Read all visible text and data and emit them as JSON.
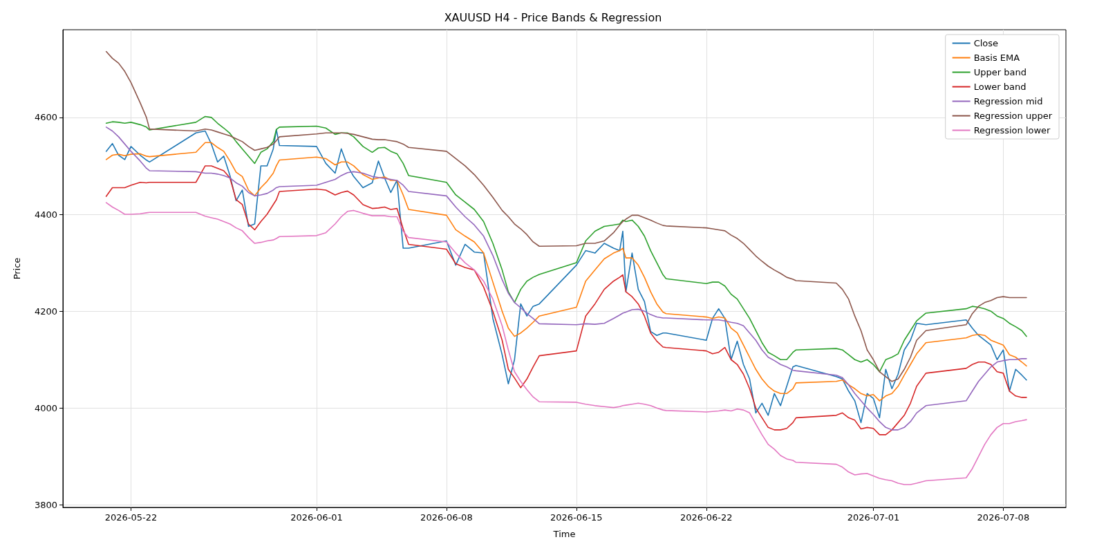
{
  "chart_data": {
    "type": "line",
    "title": "XAUUSD H4 - Price Bands & Regression",
    "xlabel": "Time",
    "ylabel": "Price",
    "x": [
      "2026-05-20T16:00",
      "2026-05-21T00:00",
      "2026-05-21T08:00",
      "2026-05-21T16:00",
      "2026-05-22T00:00",
      "2026-05-22T12:00",
      "2026-05-22T20:00",
      "2026-05-23T00:00",
      "2026-05-25T12:00",
      "2026-05-26T00:00",
      "2026-05-26T08:00",
      "2026-05-26T16:00",
      "2026-05-27T00:00",
      "2026-05-27T08:00",
      "2026-05-27T16:00",
      "2026-05-28T00:00",
      "2026-05-28T08:00",
      "2026-05-28T16:00",
      "2026-05-29T00:00",
      "2026-05-29T08:00",
      "2026-05-29T16:00",
      "2026-05-29T20:00",
      "2026-05-30T00:00",
      "2026-06-01T00:00",
      "2026-06-01T12:00",
      "2026-06-02T00:00",
      "2026-06-02T08:00",
      "2026-06-02T16:00",
      "2026-06-03T00:00",
      "2026-06-03T12:00",
      "2026-06-04T00:00",
      "2026-06-04T08:00",
      "2026-06-04T16:00",
      "2026-06-05T00:00",
      "2026-06-05T08:00",
      "2026-06-05T16:00",
      "2026-06-05T23:00",
      "2026-06-08T00:00",
      "2026-06-08T12:00",
      "2026-06-09T00:00",
      "2026-06-09T12:00",
      "2026-06-10T00:00",
      "2026-06-10T12:00",
      "2026-06-11T00:00",
      "2026-06-11T08:00",
      "2026-06-11T16:00",
      "2026-06-12T00:00",
      "2026-06-12T08:00",
      "2026-06-12T16:00",
      "2026-06-13T00:00",
      "2026-06-15T00:00",
      "2026-06-15T12:00",
      "2026-06-16T00:00",
      "2026-06-16T12:00",
      "2026-06-17T00:00",
      "2026-06-17T08:00",
      "2026-06-17T12:00",
      "2026-06-17T16:00",
      "2026-06-18T00:00",
      "2026-06-18T08:00",
      "2026-06-18T16:00",
      "2026-06-19T00:00",
      "2026-06-19T08:00",
      "2026-06-19T16:00",
      "2026-06-19T20:00",
      "2026-06-22T00:00",
      "2026-06-22T08:00",
      "2026-06-22T16:00",
      "2026-06-23T00:00",
      "2026-06-23T08:00",
      "2026-06-23T16:00",
      "2026-06-24T00:00",
      "2026-06-24T08:00",
      "2026-06-24T16:00",
      "2026-06-25T00:00",
      "2026-06-25T08:00",
      "2026-06-25T16:00",
      "2026-06-26T00:00",
      "2026-06-26T08:00",
      "2026-06-26T16:00",
      "2026-06-26T20:00",
      "2026-06-29T00:00",
      "2026-06-29T08:00",
      "2026-06-29T16:00",
      "2026-06-30T00:00",
      "2026-06-30T08:00",
      "2026-06-30T16:00",
      "2026-07-01T00:00",
      "2026-07-01T08:00",
      "2026-07-01T16:00",
      "2026-07-02T00:00",
      "2026-07-02T08:00",
      "2026-07-02T16:00",
      "2026-07-03T00:00",
      "2026-07-03T08:00",
      "2026-07-03T20:00",
      "2026-07-06T00:00",
      "2026-07-06T08:00",
      "2026-07-06T16:00",
      "2026-07-07T00:00",
      "2026-07-07T08:00",
      "2026-07-07T16:00",
      "2026-07-08T00:00",
      "2026-07-08T08:00",
      "2026-07-08T16:00",
      "2026-07-09T00:00",
      "2026-07-09T06:00"
    ],
    "series": [
      {
        "name": "Close",
        "color": "#1f77b4",
        "values": [
          4530,
          4546,
          4522,
          4513,
          4540,
          4522,
          4512,
          4508,
          4568,
          4572,
          4545,
          4508,
          4520,
          4480,
          4428,
          4450,
          4375,
          4380,
          4500,
          4500,
          4535,
          4575,
          4542,
          4540,
          4505,
          4485,
          4535,
          4500,
          4478,
          4455,
          4465,
          4510,
          4475,
          4445,
          4470,
          4330,
          4330,
          4345,
          4295,
          4338,
          4322,
          4320,
          4185,
          4110,
          4050,
          4100,
          4215,
          4190,
          4210,
          4215,
          4295,
          4325,
          4320,
          4340,
          4330,
          4325,
          4365,
          4240,
          4320,
          4245,
          4220,
          4158,
          4150,
          4155,
          4155,
          4140,
          4185,
          4205,
          4185,
          4100,
          4138,
          4090,
          4060,
          3990,
          4010,
          3985,
          4030,
          4005,
          4045,
          4085,
          4088,
          4065,
          4060,
          4035,
          4015,
          3970,
          4030,
          4020,
          3980,
          4080,
          4040,
          4070,
          4120,
          4140,
          4175,
          4172,
          4182,
          4165,
          4150,
          4140,
          4130,
          4100,
          4120,
          4035,
          4080,
          4068,
          4058
        ]
      },
      {
        "name": "Basis EMA",
        "color": "#ff7f0e",
        "values": [
          4513,
          4522,
          4524,
          4521,
          4524,
          4525,
          4520,
          4519,
          4528,
          4548,
          4548,
          4538,
          4530,
          4510,
          4487,
          4478,
          4450,
          4438,
          4455,
          4468,
          4485,
          4500,
          4512,
          4518,
          4515,
          4502,
          4508,
          4508,
          4500,
          4482,
          4472,
          4475,
          4477,
          4470,
          4470,
          4440,
          4410,
          4398,
          4368,
          4355,
          4343,
          4320,
          4260,
          4200,
          4165,
          4148,
          4155,
          4165,
          4177,
          4190,
          4208,
          4262,
          4285,
          4308,
          4320,
          4325,
          4330,
          4310,
          4310,
          4295,
          4270,
          4240,
          4215,
          4198,
          4195,
          4188,
          4185,
          4188,
          4186,
          4165,
          4155,
          4130,
          4105,
          4080,
          4060,
          4045,
          4035,
          4030,
          4030,
          4040,
          4052,
          4055,
          4058,
          4048,
          4040,
          4030,
          4025,
          4028,
          4015,
          4025,
          4030,
          4045,
          4068,
          4090,
          4112,
          4135,
          4145,
          4150,
          4152,
          4150,
          4140,
          4135,
          4130,
          4110,
          4105,
          4095,
          4087
        ]
      },
      {
        "name": "Upper band",
        "color": "#2ca02c",
        "values": [
          4588,
          4591,
          4590,
          4588,
          4590,
          4585,
          4580,
          4574,
          4590,
          4602,
          4600,
          4588,
          4578,
          4567,
          4550,
          4535,
          4520,
          4505,
          4528,
          4535,
          4550,
          4575,
          4580,
          4582,
          4578,
          4565,
          4568,
          4568,
          4560,
          4540,
          4528,
          4537,
          4538,
          4530,
          4525,
          4505,
          4480,
          4466,
          4440,
          4425,
          4410,
          4385,
          4340,
          4285,
          4240,
          4218,
          4245,
          4262,
          4270,
          4276,
          4300,
          4345,
          4365,
          4375,
          4378,
          4380,
          4388,
          4385,
          4388,
          4375,
          4355,
          4325,
          4300,
          4275,
          4267,
          4257,
          4260,
          4260,
          4252,
          4235,
          4225,
          4205,
          4185,
          4160,
          4135,
          4115,
          4108,
          4100,
          4100,
          4115,
          4120,
          4123,
          4120,
          4110,
          4100,
          4095,
          4100,
          4090,
          4075,
          4100,
          4105,
          4112,
          4140,
          4160,
          4180,
          4196,
          4205,
          4210,
          4208,
          4205,
          4200,
          4190,
          4185,
          4175,
          4168,
          4160,
          4148
        ]
      },
      {
        "name": "Lower band",
        "color": "#d62728",
        "values": [
          4437,
          4455,
          4455,
          4455,
          4460,
          4466,
          4465,
          4466,
          4466,
          4500,
          4500,
          4495,
          4490,
          4475,
          4430,
          4420,
          4380,
          4368,
          4385,
          4400,
          4420,
          4430,
          4447,
          4452,
          4450,
          4440,
          4445,
          4448,
          4440,
          4420,
          4412,
          4413,
          4415,
          4410,
          4412,
          4370,
          4338,
          4328,
          4298,
          4290,
          4285,
          4250,
          4200,
          4140,
          4080,
          4062,
          4042,
          4060,
          4085,
          4108,
          4118,
          4190,
          4215,
          4245,
          4262,
          4270,
          4275,
          4240,
          4230,
          4215,
          4190,
          4155,
          4138,
          4126,
          4125,
          4118,
          4112,
          4115,
          4125,
          4100,
          4090,
          4070,
          4040,
          4000,
          3980,
          3960,
          3955,
          3955,
          3958,
          3970,
          3980,
          3985,
          3990,
          3980,
          3975,
          3957,
          3960,
          3958,
          3945,
          3945,
          3955,
          3970,
          3985,
          4010,
          4045,
          4072,
          4082,
          4090,
          4095,
          4095,
          4090,
          4075,
          4072,
          4035,
          4025,
          4022,
          4022
        ]
      },
      {
        "name": "Regression mid",
        "color": "#9467bd",
        "values": [
          4580,
          4572,
          4560,
          4545,
          4530,
          4510,
          4495,
          4490,
          4488,
          4485,
          4485,
          4483,
          4480,
          4475,
          4465,
          4458,
          4445,
          4438,
          4440,
          4443,
          4450,
          4455,
          4457,
          4460,
          4466,
          4472,
          4480,
          4486,
          4488,
          4485,
          4478,
          4476,
          4474,
          4472,
          4470,
          4460,
          4447,
          4438,
          4415,
          4395,
          4378,
          4355,
          4315,
          4265,
          4237,
          4218,
          4207,
          4195,
          4185,
          4174,
          4172,
          4174,
          4173,
          4175,
          4185,
          4192,
          4196,
          4198,
          4203,
          4204,
          4200,
          4193,
          4188,
          4186,
          4186,
          4182,
          4182,
          4182,
          4180,
          4177,
          4175,
          4170,
          4155,
          4140,
          4120,
          4105,
          4098,
          4090,
          4085,
          4078,
          4077,
          4068,
          4063,
          4048,
          4030,
          4015,
          4000,
          3987,
          3972,
          3960,
          3955,
          3955,
          3960,
          3972,
          3990,
          4005,
          4015,
          4035,
          4055,
          4070,
          4085,
          4095,
          4098,
          4100,
          4100,
          4102,
          4102
        ]
      },
      {
        "name": "Regression upper",
        "color": "#8c564b",
        "values": [
          4736,
          4722,
          4712,
          4695,
          4672,
          4630,
          4600,
          4576,
          4572,
          4576,
          4574,
          4570,
          4566,
          4562,
          4556,
          4550,
          4540,
          4532,
          4535,
          4538,
          4545,
          4552,
          4560,
          4566,
          4568,
          4568,
          4568,
          4567,
          4565,
          4560,
          4555,
          4554,
          4554,
          4552,
          4550,
          4545,
          4538,
          4530,
          4515,
          4500,
          4482,
          4460,
          4435,
          4408,
          4395,
          4380,
          4370,
          4358,
          4343,
          4334,
          4335,
          4340,
          4340,
          4345,
          4362,
          4378,
          4385,
          4390,
          4398,
          4398,
          4393,
          4388,
          4382,
          4377,
          4376,
          4372,
          4370,
          4368,
          4366,
          4357,
          4350,
          4340,
          4327,
          4314,
          4303,
          4293,
          4285,
          4278,
          4270,
          4266,
          4263,
          4258,
          4245,
          4225,
          4190,
          4160,
          4120,
          4100,
          4075,
          4065,
          4055,
          4060,
          4080,
          4105,
          4140,
          4160,
          4172,
          4195,
          4210,
          4218,
          4222,
          4228,
          4230,
          4228,
          4228,
          4228,
          4228
        ]
      },
      {
        "name": "Regression lower",
        "color": "#e377c2",
        "values": [
          4424,
          4415,
          4408,
          4400,
          4400,
          4401,
          4403,
          4404,
          4404,
          4396,
          4393,
          4390,
          4385,
          4380,
          4372,
          4366,
          4352,
          4340,
          4342,
          4345,
          4347,
          4350,
          4354,
          4356,
          4362,
          4380,
          4395,
          4406,
          4408,
          4402,
          4397,
          4397,
          4397,
          4395,
          4395,
          4365,
          4352,
          4343,
          4320,
          4300,
          4285,
          4262,
          4225,
          4170,
          4120,
          4075,
          4055,
          4038,
          4023,
          4013,
          4012,
          4008,
          4005,
          4003,
          4001,
          4003,
          4005,
          4006,
          4008,
          4010,
          4008,
          4005,
          4000,
          3996,
          3995,
          3992,
          3993,
          3994,
          3996,
          3994,
          3998,
          3996,
          3990,
          3967,
          3945,
          3925,
          3915,
          3902,
          3895,
          3892,
          3888,
          3884,
          3878,
          3868,
          3862,
          3864,
          3865,
          3860,
          3855,
          3852,
          3850,
          3845,
          3842,
          3842,
          3845,
          3850,
          3856,
          3875,
          3900,
          3925,
          3945,
          3960,
          3968,
          3968,
          3972,
          3974,
          3976
        ]
      }
    ],
    "xlim": [
      "2026-05-18T08:00",
      "2026-07-11T09:00"
    ],
    "xticks": [
      "2026-05-22",
      "2026-06-01",
      "2026-06-08",
      "2026-06-15",
      "2026-06-22",
      "2026-07-01",
      "2026-07-08"
    ],
    "ylim": [
      3795,
      4781
    ],
    "yticks": [
      3800,
      4000,
      4200,
      4400,
      4600
    ],
    "grid": true,
    "legend": "top right",
    "marker": "none",
    "line_style": "solid"
  }
}
